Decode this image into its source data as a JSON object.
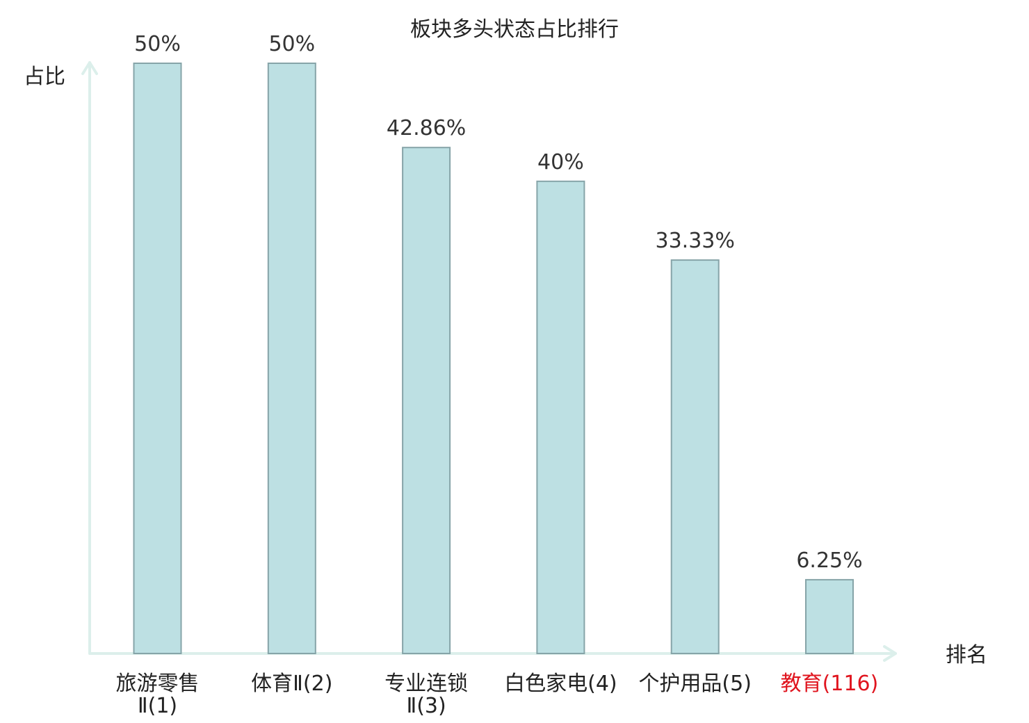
{
  "chart_data": {
    "type": "bar",
    "title": "板块多头状态占比排行",
    "ylabel": "占比",
    "xlabel": "排名",
    "categories": [
      [
        "旅游零售",
        "Ⅱ(1)"
      ],
      [
        "体育Ⅱ(2)"
      ],
      [
        "专业连锁",
        "Ⅱ(3)"
      ],
      [
        "白色家电(4)"
      ],
      [
        "个护用品(5)"
      ],
      [
        "教育(116)"
      ]
    ],
    "values": [
      50,
      50,
      42.86,
      40,
      33.33,
      6.25
    ],
    "value_labels": [
      "50%",
      "50%",
      "42.86%",
      "40%",
      "33.33%",
      "6.25%"
    ],
    "highlight_index": 5,
    "ylim": [
      0,
      50
    ],
    "grid": false,
    "legend": "none",
    "colors": {
      "bar_fill": "#bde0e3",
      "bar_stroke": "#86a4a8",
      "axis": "#dcefeb",
      "text": "#222222",
      "value_text": "#333333",
      "highlight_text": "#e0141e"
    }
  }
}
